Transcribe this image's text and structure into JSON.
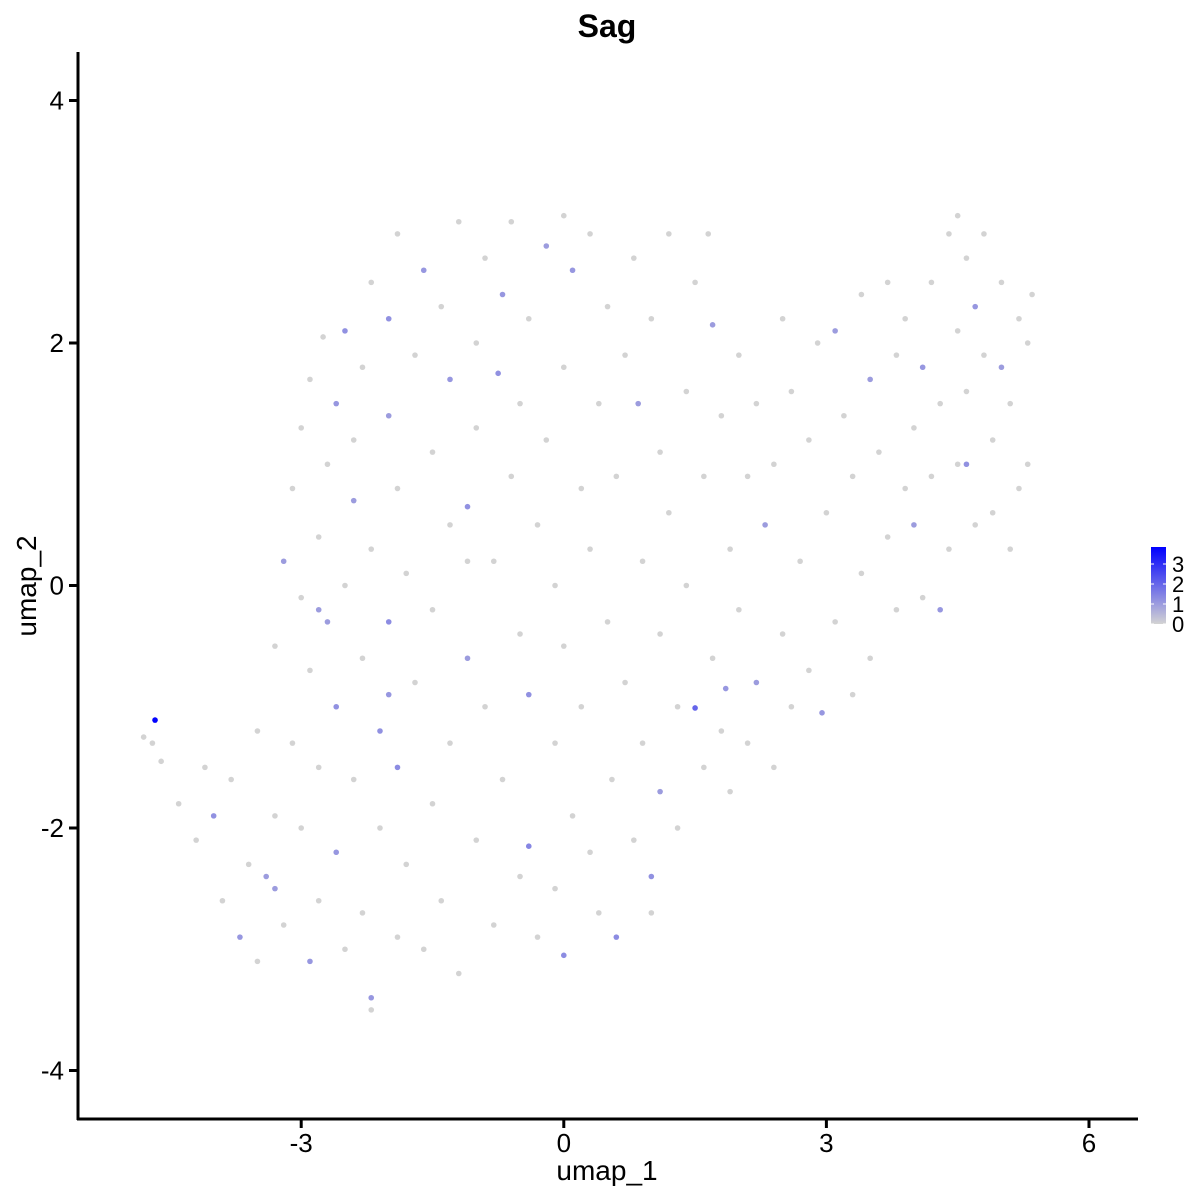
{
  "chart_data": {
    "type": "scatter",
    "title": "Sag",
    "xlabel": "umap_1",
    "ylabel": "umap_2",
    "xlim": [
      -5.55,
      6.56
    ],
    "ylim": [
      -4.4,
      4.4
    ],
    "xticks": [
      -3,
      0,
      3,
      6
    ],
    "yticks": [
      -4,
      -2,
      0,
      2,
      4
    ],
    "xtick_labels": [
      "-3",
      "0",
      "3",
      "6"
    ],
    "ytick_labels": [
      "-4",
      "-2",
      "0",
      "2",
      "4"
    ],
    "grid": false,
    "legend": {
      "position": "right",
      "range": [
        0,
        3.85
      ],
      "ticks": [
        0,
        1,
        2,
        3
      ],
      "tick_labels": [
        "0",
        "1",
        "2",
        "3"
      ]
    },
    "colors": {
      "low": "#d3d3d3",
      "high": "#0000ff"
    },
    "points": [
      [
        -4.67,
        -1.11,
        3.8
      ],
      [
        -4.8,
        -1.25,
        0
      ],
      [
        -4.7,
        -1.3,
        0
      ],
      [
        -4.6,
        -1.45,
        0
      ],
      [
        -4.4,
        -1.8,
        0
      ],
      [
        -4.2,
        -2.1,
        0
      ],
      [
        -4.1,
        -1.5,
        0
      ],
      [
        -4.0,
        -1.9,
        1.2
      ],
      [
        -3.9,
        -2.6,
        0
      ],
      [
        -3.8,
        -1.6,
        0
      ],
      [
        -3.7,
        -2.9,
        1.1
      ],
      [
        -3.6,
        -2.3,
        0
      ],
      [
        -3.5,
        -3.1,
        0
      ],
      [
        -3.5,
        -1.2,
        0
      ],
      [
        -3.4,
        -2.4,
        1.0
      ],
      [
        -3.3,
        -0.5,
        0
      ],
      [
        -3.3,
        -1.9,
        0
      ],
      [
        -3.2,
        0.2,
        1.0
      ],
      [
        -3.2,
        -2.8,
        0
      ],
      [
        -3.1,
        -1.3,
        0
      ],
      [
        -3.1,
        0.8,
        0
      ],
      [
        -3.0,
        -0.1,
        0
      ],
      [
        -3.0,
        -2.0,
        0
      ],
      [
        -3.0,
        1.3,
        0
      ],
      [
        -2.9,
        -3.1,
        1.1
      ],
      [
        -2.9,
        1.7,
        0
      ],
      [
        -2.9,
        -0.7,
        0
      ],
      [
        -2.8,
        -1.5,
        0
      ],
      [
        -2.8,
        0.4,
        0
      ],
      [
        -2.8,
        -2.6,
        0
      ],
      [
        -2.75,
        2.05,
        0
      ],
      [
        -2.7,
        -0.3,
        1.0
      ],
      [
        -2.7,
        1.0,
        0
      ],
      [
        -2.6,
        -2.2,
        1.1
      ],
      [
        -2.6,
        -1.0,
        1.2
      ],
      [
        -2.6,
        1.5,
        1.1
      ],
      [
        -2.5,
        2.1,
        1.2
      ],
      [
        -2.5,
        0.0,
        0
      ],
      [
        -2.5,
        -3.0,
        0
      ],
      [
        -2.4,
        -1.6,
        0
      ],
      [
        -2.4,
        0.7,
        1.0
      ],
      [
        -2.4,
        1.2,
        0
      ],
      [
        -2.3,
        -2.7,
        0
      ],
      [
        -2.3,
        -0.6,
        0
      ],
      [
        -2.3,
        1.8,
        0
      ],
      [
        -2.2,
        -3.5,
        0
      ],
      [
        -2.2,
        -3.4,
        1.1
      ],
      [
        -2.2,
        0.3,
        0
      ],
      [
        -2.2,
        2.5,
        0
      ],
      [
        -2.1,
        -1.2,
        1.2
      ],
      [
        -2.1,
        -2.0,
        0
      ],
      [
        -2.0,
        1.4,
        1.0
      ],
      [
        -2.0,
        -0.3,
        1.3
      ],
      [
        -2.0,
        2.2,
        1.2
      ],
      [
        -1.9,
        -2.9,
        0
      ],
      [
        -1.9,
        -1.5,
        1.3
      ],
      [
        -1.9,
        0.8,
        0
      ],
      [
        -1.9,
        2.9,
        0
      ],
      [
        -1.8,
        -2.3,
        0
      ],
      [
        -1.8,
        0.1,
        0
      ],
      [
        -1.7,
        1.9,
        0
      ],
      [
        -1.7,
        -0.8,
        0
      ],
      [
        -1.6,
        2.6,
        1.1
      ],
      [
        -1.6,
        -3.0,
        0
      ],
      [
        -1.5,
        -1.8,
        0
      ],
      [
        -1.5,
        1.1,
        0
      ],
      [
        -1.5,
        -0.2,
        0
      ],
      [
        -1.4,
        2.3,
        0
      ],
      [
        -1.4,
        -2.6,
        0
      ],
      [
        -1.3,
        0.5,
        0
      ],
      [
        -1.3,
        -1.3,
        0
      ],
      [
        -1.3,
        1.7,
        1.1
      ],
      [
        -1.2,
        -3.2,
        0
      ],
      [
        -1.2,
        3.0,
        0
      ],
      [
        -1.1,
        -0.6,
        1.0
      ],
      [
        -1.1,
        0.65,
        1.2
      ],
      [
        -1.0,
        2.0,
        0
      ],
      [
        -1.0,
        -2.1,
        0
      ],
      [
        -1.0,
        1.3,
        0
      ],
      [
        -0.9,
        2.7,
        0
      ],
      [
        -0.9,
        -1.0,
        0
      ],
      [
        -0.8,
        0.2,
        0
      ],
      [
        -0.8,
        -2.8,
        0
      ],
      [
        -0.75,
        1.75,
        1.2
      ],
      [
        -0.7,
        2.4,
        1.1
      ],
      [
        -0.7,
        -1.6,
        0
      ],
      [
        -0.6,
        0.9,
        0
      ],
      [
        -0.6,
        3.0,
        0
      ],
      [
        -0.5,
        -0.4,
        0
      ],
      [
        -0.5,
        -2.4,
        0
      ],
      [
        -0.5,
        1.5,
        0
      ],
      [
        -0.4,
        2.2,
        0
      ],
      [
        -0.4,
        -0.9,
        1.2
      ],
      [
        -0.4,
        -2.15,
        1.4
      ],
      [
        -0.3,
        0.5,
        0
      ],
      [
        -0.3,
        -2.9,
        0
      ],
      [
        -0.2,
        1.2,
        0
      ],
      [
        -0.2,
        2.8,
        1.0
      ],
      [
        -0.1,
        -1.3,
        0
      ],
      [
        -0.1,
        0.0,
        0
      ],
      [
        -0.1,
        -2.5,
        0
      ],
      [
        0.0,
        3.05,
        0
      ],
      [
        0.0,
        -3.05,
        1.3
      ],
      [
        0.0,
        1.8,
        0
      ],
      [
        0.0,
        -0.5,
        0
      ],
      [
        0.1,
        2.6,
        1.1
      ],
      [
        0.1,
        -1.9,
        0
      ],
      [
        0.2,
        0.8,
        0
      ],
      [
        0.2,
        -1.0,
        0
      ],
      [
        0.3,
        2.9,
        0
      ],
      [
        0.3,
        -2.2,
        0
      ],
      [
        0.3,
        0.3,
        0
      ],
      [
        0.4,
        1.5,
        0
      ],
      [
        0.4,
        -2.7,
        0
      ],
      [
        0.5,
        -0.3,
        0
      ],
      [
        0.5,
        2.3,
        0
      ],
      [
        0.55,
        -1.6,
        0
      ],
      [
        0.6,
        -2.9,
        1.3
      ],
      [
        0.6,
        0.9,
        0
      ],
      [
        0.7,
        1.9,
        0
      ],
      [
        0.7,
        -0.8,
        0
      ],
      [
        0.8,
        2.7,
        0
      ],
      [
        0.8,
        -2.1,
        0
      ],
      [
        0.85,
        1.5,
        1.0
      ],
      [
        0.9,
        0.2,
        0
      ],
      [
        0.9,
        -1.3,
        0
      ],
      [
        1.0,
        -2.4,
        1.2
      ],
      [
        1.0,
        -2.7,
        0
      ],
      [
        1.0,
        2.2,
        0
      ],
      [
        1.1,
        -0.4,
        0
      ],
      [
        1.1,
        1.1,
        0
      ],
      [
        1.1,
        -1.7,
        1.0
      ],
      [
        1.2,
        0.6,
        0
      ],
      [
        1.2,
        2.9,
        0
      ],
      [
        1.3,
        -1.0,
        0
      ],
      [
        1.3,
        -2.0,
        0
      ],
      [
        1.4,
        1.6,
        0
      ],
      [
        1.4,
        0.0,
        0
      ],
      [
        1.5,
        -1.01,
        2.0
      ],
      [
        1.5,
        2.5,
        0
      ],
      [
        1.6,
        -1.5,
        0
      ],
      [
        1.6,
        0.9,
        0
      ],
      [
        1.65,
        2.9,
        0
      ],
      [
        1.7,
        2.15,
        1.0
      ],
      [
        1.7,
        -0.6,
        0
      ],
      [
        1.8,
        1.4,
        0
      ],
      [
        1.8,
        -1.2,
        0
      ],
      [
        1.9,
        0.3,
        0
      ],
      [
        1.9,
        -1.7,
        0
      ],
      [
        1.85,
        -0.85,
        1.1
      ],
      [
        2.0,
        1.9,
        0
      ],
      [
        2.0,
        -0.2,
        0
      ],
      [
        2.1,
        -1.3,
        0
      ],
      [
        2.1,
        0.9,
        0
      ],
      [
        2.2,
        -0.8,
        1.0
      ],
      [
        2.2,
        1.5,
        0
      ],
      [
        2.3,
        0.5,
        1.0
      ],
      [
        2.4,
        -1.5,
        0
      ],
      [
        2.4,
        1.0,
        0
      ],
      [
        2.5,
        -0.4,
        0
      ],
      [
        2.5,
        2.2,
        0
      ],
      [
        2.6,
        1.6,
        0
      ],
      [
        2.6,
        -1.0,
        0
      ],
      [
        2.7,
        0.2,
        0
      ],
      [
        2.8,
        1.2,
        0
      ],
      [
        2.8,
        -0.7,
        0
      ],
      [
        2.9,
        2.0,
        0
      ],
      [
        2.95,
        -1.05,
        1.1
      ],
      [
        3.0,
        0.6,
        0
      ],
      [
        3.1,
        2.1,
        1.0
      ],
      [
        3.1,
        -0.3,
        0
      ],
      [
        3.2,
        1.4,
        0
      ],
      [
        3.3,
        -0.9,
        0
      ],
      [
        3.3,
        0.9,
        0
      ],
      [
        3.4,
        2.4,
        0
      ],
      [
        3.4,
        0.1,
        0
      ],
      [
        3.5,
        1.7,
        1.0
      ],
      [
        3.5,
        -0.6,
        0
      ],
      [
        3.6,
        1.1,
        0
      ],
      [
        3.7,
        2.5,
        0
      ],
      [
        3.7,
        0.4,
        0
      ],
      [
        3.8,
        -0.2,
        0
      ],
      [
        3.8,
        1.9,
        0
      ],
      [
        3.9,
        0.8,
        0
      ],
      [
        3.9,
        2.2,
        0
      ],
      [
        4.0,
        1.3,
        0
      ],
      [
        4.0,
        0.5,
        1.0
      ],
      [
        4.1,
        -0.1,
        0
      ],
      [
        4.1,
        1.8,
        1.1
      ],
      [
        4.2,
        2.5,
        0
      ],
      [
        4.2,
        0.9,
        0
      ],
      [
        4.3,
        -0.2,
        1.1
      ],
      [
        4.3,
        1.5,
        0
      ],
      [
        4.4,
        2.9,
        0
      ],
      [
        4.4,
        0.3,
        0
      ],
      [
        4.5,
        2.1,
        0
      ],
      [
        4.5,
        1.0,
        0
      ],
      [
        4.6,
        2.7,
        0
      ],
      [
        4.6,
        1.6,
        0
      ],
      [
        4.6,
        1.0,
        1.2
      ],
      [
        4.7,
        0.5,
        0
      ],
      [
        4.7,
        2.3,
        1.1
      ],
      [
        4.8,
        1.9,
        0
      ],
      [
        4.8,
        2.9,
        0
      ],
      [
        4.9,
        1.2,
        0
      ],
      [
        4.9,
        0.6,
        0
      ],
      [
        5.0,
        2.5,
        0
      ],
      [
        5.0,
        1.8,
        1.0
      ],
      [
        5.1,
        0.3,
        0
      ],
      [
        5.1,
        1.5,
        0
      ],
      [
        5.2,
        2.2,
        0
      ],
      [
        5.2,
        0.8,
        0
      ],
      [
        5.3,
        2.0,
        0
      ],
      [
        5.3,
        1.0,
        0
      ],
      [
        5.35,
        2.4,
        0
      ],
      [
        4.5,
        3.05,
        0
      ],
      [
        -2.8,
        -0.2,
        1.0
      ],
      [
        -3.3,
        -2.5,
        1.0
      ],
      [
        -2.0,
        -0.9,
        1.1
      ],
      [
        -1.1,
        0.2,
        0
      ]
    ]
  }
}
